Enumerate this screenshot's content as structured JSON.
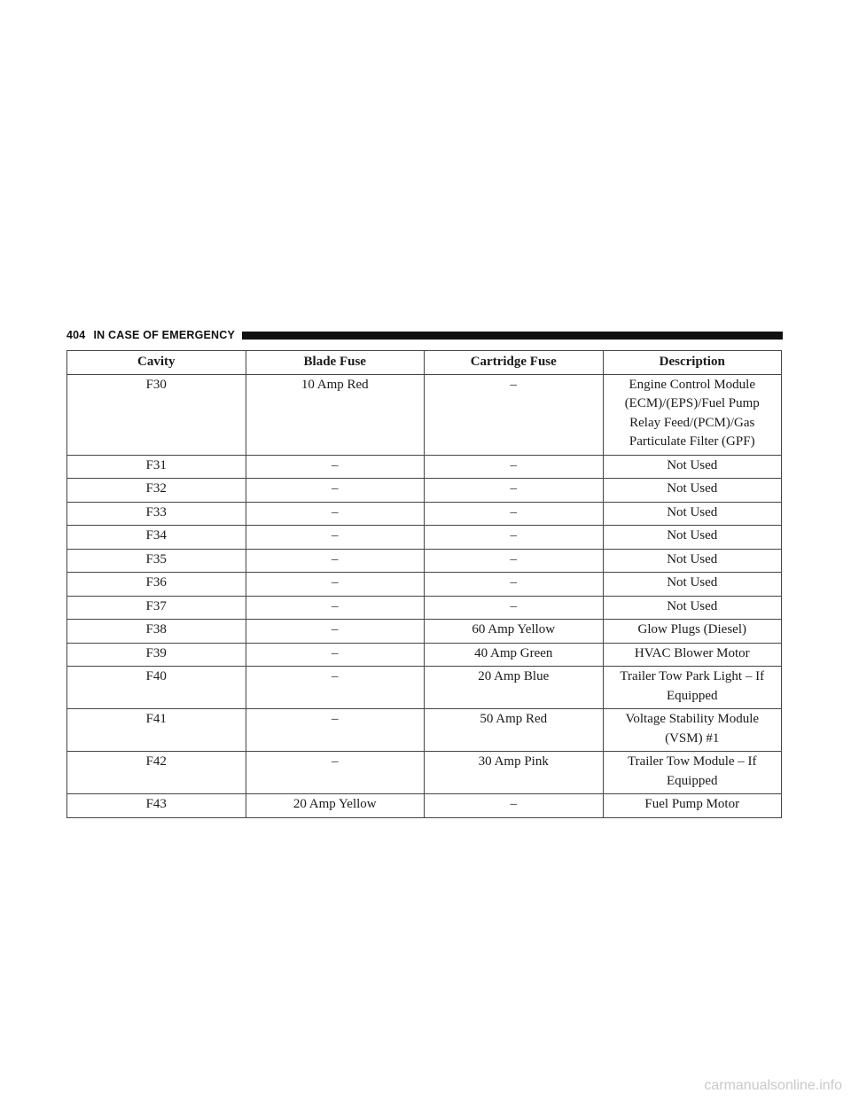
{
  "header": {
    "page_number": "404",
    "section_title": "IN CASE OF EMERGENCY"
  },
  "table": {
    "columns": [
      "Cavity",
      "Blade Fuse",
      "Cartridge Fuse",
      "Description"
    ],
    "rows": [
      [
        "F30",
        "10 Amp Red",
        "–",
        "Engine Control Module (ECM)/(EPS)/Fuel Pump Relay Feed/(PCM)/Gas Particulate Filter (GPF)"
      ],
      [
        "F31",
        "–",
        "–",
        "Not Used"
      ],
      [
        "F32",
        "–",
        "–",
        "Not Used"
      ],
      [
        "F33",
        "–",
        "–",
        "Not Used"
      ],
      [
        "F34",
        "–",
        "–",
        "Not Used"
      ],
      [
        "F35",
        "–",
        "–",
        "Not Used"
      ],
      [
        "F36",
        "–",
        "–",
        "Not Used"
      ],
      [
        "F37",
        "–",
        "–",
        "Not Used"
      ],
      [
        "F38",
        "–",
        "60 Amp Yellow",
        "Glow Plugs (Diesel)"
      ],
      [
        "F39",
        "–",
        "40 Amp Green",
        "HVAC Blower Motor"
      ],
      [
        "F40",
        "–",
        "20 Amp Blue",
        "Trailer Tow Park Light – If Equipped"
      ],
      [
        "F41",
        "–",
        "50 Amp Red",
        "Voltage Stability Module (VSM) #1"
      ],
      [
        "F42",
        "–",
        "30 Amp Pink",
        "Trailer Tow Module – If Equipped"
      ],
      [
        "F43",
        "20 Amp Yellow",
        "–",
        "Fuel Pump Motor"
      ]
    ]
  },
  "watermark": "carmanualsonline.info"
}
